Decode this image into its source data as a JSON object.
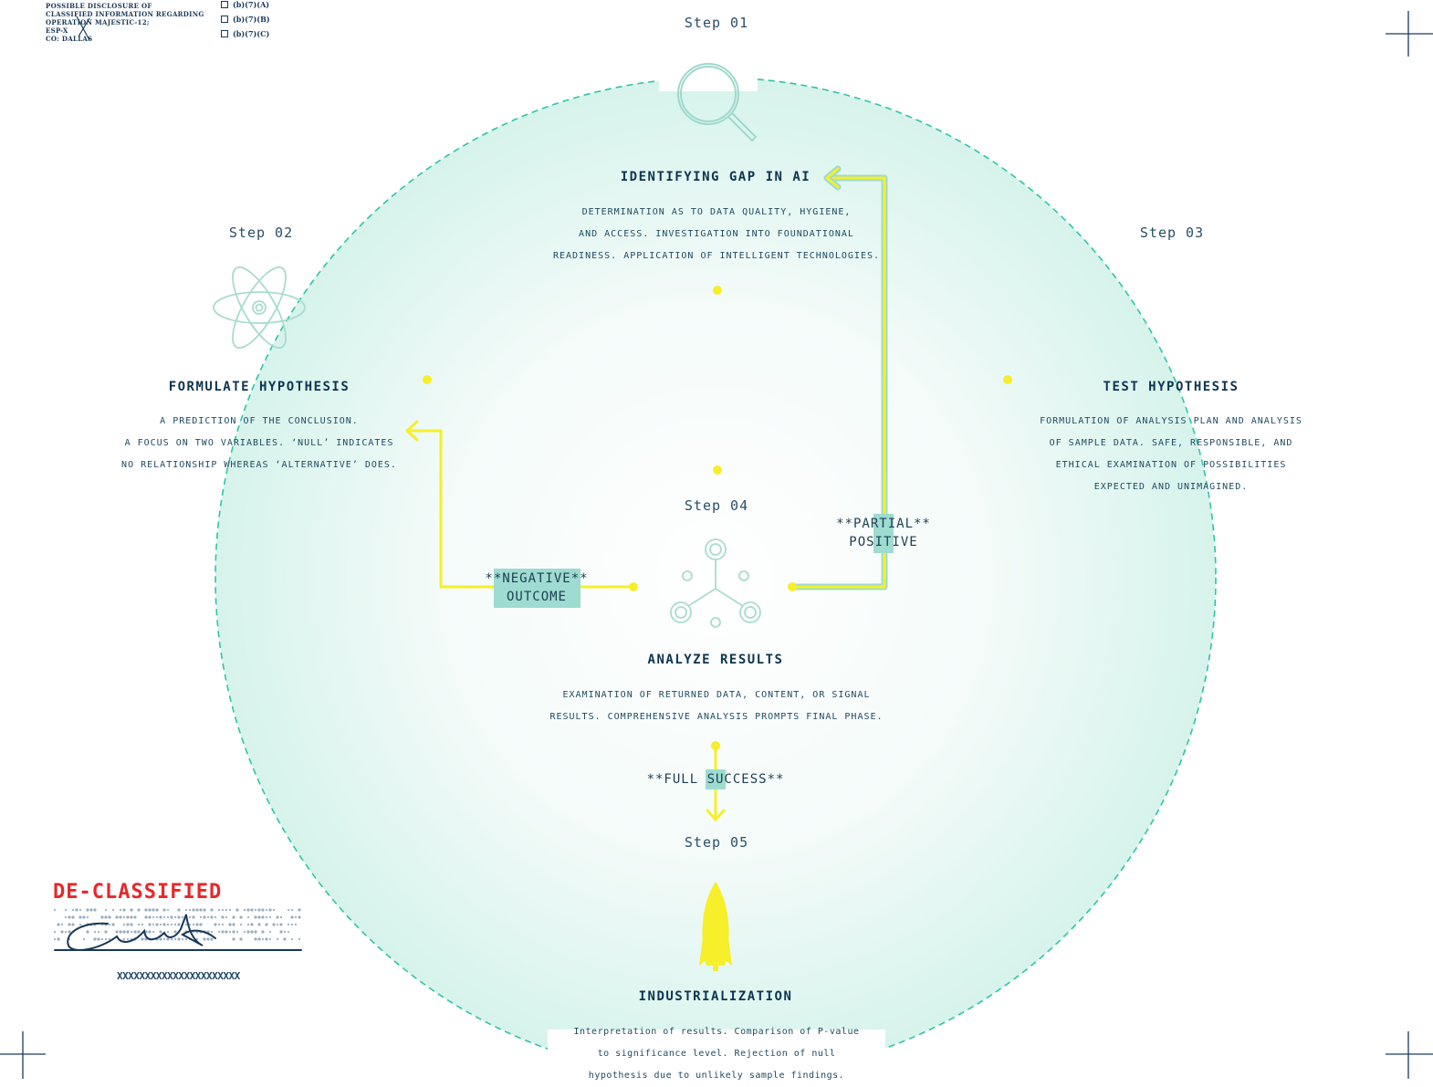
{
  "doc_header": {
    "lines": [
      "POSSIBLE DISCLOSURE OF",
      "CLASSIFIED INFORMATION REGARDING",
      "OPERATION MAJESTIC-12;",
      "ESP-X",
      "CO:  DALLAS"
    ],
    "checkboxes": [
      "(b)(7)(A)",
      "(b)(7)(B)",
      "(b)(7)(C)"
    ]
  },
  "steps": [
    {
      "label": "Step 01",
      "icon": "magnifying-glass-icon",
      "title": "IDENTIFYING GAP IN AI",
      "desc": [
        "DETERMINATION AS TO DATA QUALITY, HYGIENE,",
        "AND ACCESS. INVESTIGATION INTO FOUNDATIONAL",
        "READINESS. APPLICATION OF INTELLIGENT TECHNOLOGIES."
      ]
    },
    {
      "label": "Step 02",
      "icon": "atom-icon",
      "title": "FORMULATE HYPOTHESIS",
      "desc": [
        "A PREDICTION OF THE CONCLUSION.",
        "A FOCUS ON TWO VARIABLES. ‘NULL’ INDICATES",
        "NO RELATIONSHIP WHEREAS ‘ALTERNATIVE’ DOES."
      ]
    },
    {
      "label": "Step 03",
      "icon": "",
      "title": "TEST HYPOTHESIS",
      "desc": [
        "FORMULATION OF ANALYSIS PLAN AND ANALYSIS",
        "OF SAMPLE DATA. SAFE, RESPONSIBLE, AND",
        "ETHICAL EXAMINATION OF POSSIBILITIES",
        "EXPECTED AND UNIMAGINED."
      ]
    },
    {
      "label": "Step 04",
      "icon": "network-nodes-icon",
      "title": "ANALYZE RESULTS",
      "desc": [
        "EXAMINATION OF RETURNED DATA, CONTENT, OR SIGNAL",
        "RESULTS. COMPREHENSIVE ANALYSIS PROMPTS FINAL PHASE."
      ]
    },
    {
      "label": "Step 05",
      "icon": "rocket-icon",
      "title": "INDUSTRIALIZATION",
      "desc": [
        "Interpretation of results. Comparison of P-value",
        "to significance level. Rejection of null",
        "hypothesis due to unlikely sample findings."
      ]
    }
  ],
  "outcomes": {
    "negative": [
      "**NEGATIVE**",
      "OUTCOME"
    ],
    "partial": [
      "**PARTIAL**",
      "POSITIVE"
    ],
    "full": [
      "**FULL SUCCESS**"
    ]
  },
  "stamp": {
    "label": "DE-CLASSIFIED",
    "xrow": "XXXXXXXXXXXXXXXXXXXXXX"
  },
  "colors": {
    "teal": "#2fc4a8",
    "yellow": "#f6ef2a",
    "navy": "#0d3550",
    "stamp_red": "#e8272a",
    "tag_bg": "#9edbd0"
  }
}
